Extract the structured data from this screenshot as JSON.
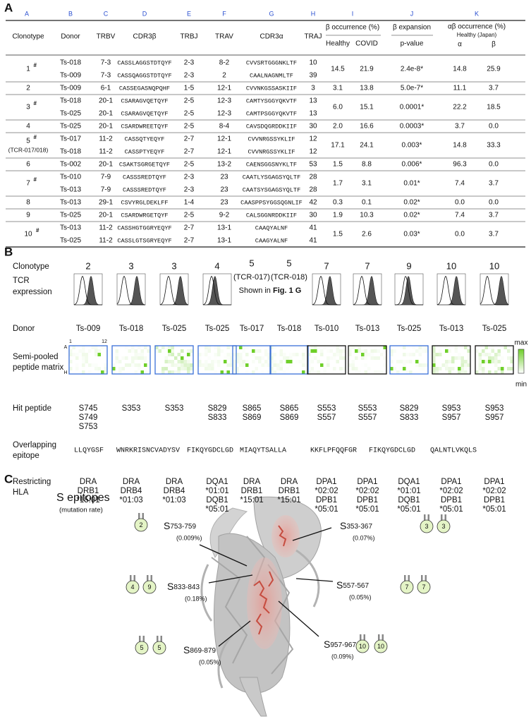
{
  "panelA": {
    "label": "A",
    "column_letters": [
      "A",
      "B",
      "C",
      "D",
      "E",
      "F",
      "G",
      "H",
      "I",
      "J",
      "K"
    ],
    "headers": {
      "clonotype": "Clonotype",
      "donor": "Donor",
      "trbv": "TRBV",
      "cdr3b": "CDR3β",
      "trbj": "TRBJ",
      "trav": "TRAV",
      "cdr3a": "CDR3α",
      "traj": "TRAJ",
      "occurrence": "β occurrence (%)",
      "healthy": "Healthy",
      "covid": "COVID",
      "expansion": "β expansion",
      "pvalue": "p-value",
      "ab_occurrence": "αβ occurrence (%)",
      "japan": "Healthy (Japan)",
      "alpha": "α",
      "beta": "β"
    },
    "rows": [
      {
        "clonotype": "1",
        "mark": "#",
        "chains": [
          [
            "Ts-018",
            "7-3",
            "CASSLAGGSTDTQYF",
            "2-3",
            "8-2",
            "CVVSRTGGGNKLTF",
            "10"
          ],
          [
            "Ts-009",
            "7-3",
            "CASSQAGGSTDTQYF",
            "2-3",
            "2",
            "CAALNAGNMLTF",
            "39"
          ]
        ],
        "healthy": "14.5",
        "covid": "21.9",
        "p": "2.4e-8*",
        "alpha": "14.8",
        "beta": "25.9"
      },
      {
        "clonotype": "2",
        "chains": [
          [
            "Ts-009",
            "6-1",
            "CASSEGASNQPQHF",
            "1-5",
            "12-1",
            "CVVNKGSSASKIIF",
            "3"
          ]
        ],
        "healthy": "3.1",
        "covid": "13.8",
        "p": "5.0e-7*",
        "alpha": "11.1",
        "beta": "3.7"
      },
      {
        "clonotype": "3",
        "mark": "#",
        "chains": [
          [
            "Ts-018",
            "20-1",
            "CSARAGVQETQYF",
            "2-5",
            "12-3",
            "CAMTYSGGYQKVTF",
            "13"
          ],
          [
            "Ts-025",
            "20-1",
            "CSARAGVQETQYF",
            "2-5",
            "12-3",
            "CAMTPSGGYQKVTF",
            "13"
          ]
        ],
        "healthy": "6.0",
        "covid": "15.1",
        "p": "0.0001*",
        "alpha": "22.2",
        "beta": "18.5"
      },
      {
        "clonotype": "4",
        "chains": [
          [
            "Ts-025",
            "20-1",
            "CSARDWREETQYF",
            "2-5",
            "8-4",
            "CAVSDQGRDDKIIF",
            "30"
          ]
        ],
        "healthy": "2.0",
        "covid": "16.6",
        "p": "0.0003*",
        "alpha": "3.7",
        "beta": "0.0"
      },
      {
        "clonotype": "5",
        "mark": "#",
        "note": "(TCR-017/018)",
        "chains": [
          [
            "Ts-017",
            "11-2",
            "CASSQTYEQYF",
            "2-7",
            "12-1",
            "CVVNRGSSYKLIF",
            "12"
          ],
          [
            "Ts-018",
            "11-2",
            "CASSPTYEQYF",
            "2-7",
            "12-1",
            "CVVNRGSSYKLIF",
            "12"
          ]
        ],
        "healthy": "17.1",
        "covid": "24.1",
        "p": "0.003*",
        "alpha": "14.8",
        "beta": "33.3"
      },
      {
        "clonotype": "6",
        "chains": [
          [
            "Ts-002",
            "20-1",
            "CSAKTSGRGETQYF",
            "2-5",
            "13-2",
            "CAENSGGSNYKLTF",
            "53"
          ]
        ],
        "healthy": "1.5",
        "covid": "8.8",
        "p": "0.006*",
        "alpha": "96.3",
        "beta": "0.0"
      },
      {
        "clonotype": "7",
        "mark": "#",
        "chains": [
          [
            "Ts-010",
            "7-9",
            "CASSSREDTQYF",
            "2-3",
            "23",
            "CAATLYSGAGSYQLTF",
            "28"
          ],
          [
            "Ts-013",
            "7-9",
            "CASSSREDTQYF",
            "2-3",
            "23",
            "CAATSYSGAGSYQLTF",
            "28"
          ]
        ],
        "healthy": "1.7",
        "covid": "3.1",
        "p": "0.01*",
        "alpha": "7.4",
        "beta": "3.7"
      },
      {
        "clonotype": "8",
        "chains": [
          [
            "Ts-013",
            "29-1",
            "CSVYRGLDEKLFF",
            "1-4",
            "23",
            "CAASPPSYGGSQGNLIF",
            "42"
          ]
        ],
        "healthy": "0.3",
        "covid": "0.1",
        "p": "0.02*",
        "alpha": "0.0",
        "beta": "0.0"
      },
      {
        "clonotype": "9",
        "chains": [
          [
            "Ts-025",
            "20-1",
            "CSARDWRGETQYF",
            "2-5",
            "9-2",
            "CALSGGNRDDKIIF",
            "30"
          ]
        ],
        "healthy": "1.9",
        "covid": "10.3",
        "p": "0.02*",
        "alpha": "7.4",
        "beta": "3.7"
      },
      {
        "clonotype": "10",
        "mark": "#",
        "chains": [
          [
            "Ts-013",
            "11-2",
            "CASSHGTGGRYEQYF",
            "2-7",
            "13-1",
            "CAAQYALNF",
            "41"
          ],
          [
            "Ts-025",
            "11-2",
            "CASSLGTSGRYEQYF",
            "2-7",
            "13-1",
            "CAAGYALNF",
            "41"
          ]
        ],
        "healthy": "1.5",
        "covid": "2.6",
        "p": "0.03*",
        "alpha": "0.0",
        "beta": "3.7"
      }
    ]
  },
  "panelB": {
    "label": "B",
    "row_labels": {
      "clonotype": "Clonotype",
      "tcr": [
        "TCR",
        "expression"
      ],
      "donor": "Donor",
      "matrix": [
        "Semi-pooled",
        "peptide matrix"
      ],
      "hit": "Hit peptide",
      "epitope": [
        "Overlapping",
        "epitope"
      ],
      "hla": [
        "Restricting",
        "HLA"
      ]
    },
    "matrix_axis": {
      "col_first": "1",
      "col_last": "12",
      "row_first": "A",
      "row_last": "H"
    },
    "scale": {
      "max": "max",
      "min": "min"
    },
    "expression_note": {
      "text": "Shown in ",
      "ref": "Fig. 1 G"
    },
    "columns": [
      {
        "clonotype": "2",
        "histogram": true,
        "donor": "Ts-009",
        "hits": [
          "S745",
          "S749",
          "S753"
        ],
        "hla": [
          "DRA",
          "DRB1",
          "*15:01"
        ],
        "border": "#3a6fd8"
      },
      {
        "clonotype": "3",
        "histogram": true,
        "donor": "Ts-018",
        "hits": [
          "S353"
        ],
        "hla": [
          "DRA",
          "DRB4",
          "*01:03"
        ],
        "border": "#3a6fd8"
      },
      {
        "clonotype": "3",
        "histogram": true,
        "donor": "Ts-025",
        "hits": [
          "S353"
        ],
        "hla": [
          "DRA",
          "DRB4",
          "*01:03"
        ],
        "border": "#3a6fd8"
      },
      {
        "clonotype": "4",
        "histogram": true,
        "donor": "Ts-025",
        "hits": [
          "S829",
          "S833"
        ],
        "hla": [
          "DQA1",
          "*01:01",
          "DQB1",
          "*05:01"
        ],
        "border": "#3a6fd8"
      },
      {
        "clonotype": "5",
        "tcr": "(TCR-017)",
        "histogram": false,
        "donor": "Ts-017",
        "hits": [
          "S865",
          "S869"
        ],
        "hla": [
          "DRA",
          "DRB1",
          "*15:01"
        ],
        "border": "#3a6fd8"
      },
      {
        "clonotype": "5",
        "tcr": "(TCR-018)",
        "histogram": false,
        "donor": "Ts-018",
        "hits": [
          "S865",
          "S869"
        ],
        "hla": [
          "DRA",
          "DRB1",
          "*15:01"
        ],
        "border": "#3a6fd8"
      },
      {
        "clonotype": "7",
        "histogram": true,
        "donor": "Ts-010",
        "hits": [
          "S553",
          "S557"
        ],
        "hla": [
          "DPA1",
          "*02:02",
          "DPB1",
          "*05:01"
        ],
        "border": "#111111"
      },
      {
        "clonotype": "7",
        "histogram": true,
        "donor": "Ts-013",
        "hits": [
          "S553",
          "S557"
        ],
        "hla": [
          "DPA1",
          "*02:02",
          "DPB1",
          "*05:01"
        ],
        "border": "#111111"
      },
      {
        "clonotype": "9",
        "histogram": true,
        "donor": "Ts-025",
        "hits": [
          "S829",
          "S833"
        ],
        "hla": [
          "DQA1",
          "*01:01",
          "DQB1",
          "*05:01"
        ],
        "border": "#3a6fd8"
      },
      {
        "clonotype": "10",
        "histogram": true,
        "donor": "Ts-013",
        "hits": [
          "S953",
          "S957"
        ],
        "hla": [
          "DPA1",
          "*02:02",
          "DPB1",
          "*05:01"
        ],
        "border": "#111111"
      },
      {
        "clonotype": "10",
        "histogram": true,
        "donor": "Ts-025",
        "hits": [
          "S953",
          "S957"
        ],
        "hla": [
          "DPA1",
          "*02:02",
          "DPB1",
          "*05:01"
        ],
        "border": "#111111"
      }
    ],
    "epitopes": [
      "LLQYGSF",
      "WNRKRISNCVADYSV",
      "FIKQYGDCLGD",
      "MIAQYTSALLA",
      "KKFLPFQQFGR",
      "FIKQYGDCLGD",
      "QALNTLVKQLS"
    ]
  },
  "panelC": {
    "label": "C",
    "title": "S epitopes",
    "subtitle": "(mutation rate)",
    "epitopes": [
      {
        "prefix": "S",
        "range": "753-759",
        "rate": "(0.009%)",
        "clonotypes": [
          "2"
        ]
      },
      {
        "prefix": "S",
        "range": "833-843",
        "rate": "(0.18%)",
        "clonotypes": [
          "4",
          "9"
        ]
      },
      {
        "prefix": "S",
        "range": "869-879",
        "rate": "(0.05%)",
        "clonotypes": [
          "5",
          "5"
        ]
      },
      {
        "prefix": "S",
        "range": "353-367",
        "rate": "(0.07%)",
        "clonotypes": [
          "3",
          "3"
        ]
      },
      {
        "prefix": "S",
        "range": "557-567",
        "rate": "(0.05%)",
        "clonotypes": [
          "7",
          "7"
        ]
      },
      {
        "prefix": "S",
        "range": "957-967",
        "rate": "(0.09%)",
        "clonotypes": [
          "10",
          "10"
        ]
      }
    ]
  }
}
